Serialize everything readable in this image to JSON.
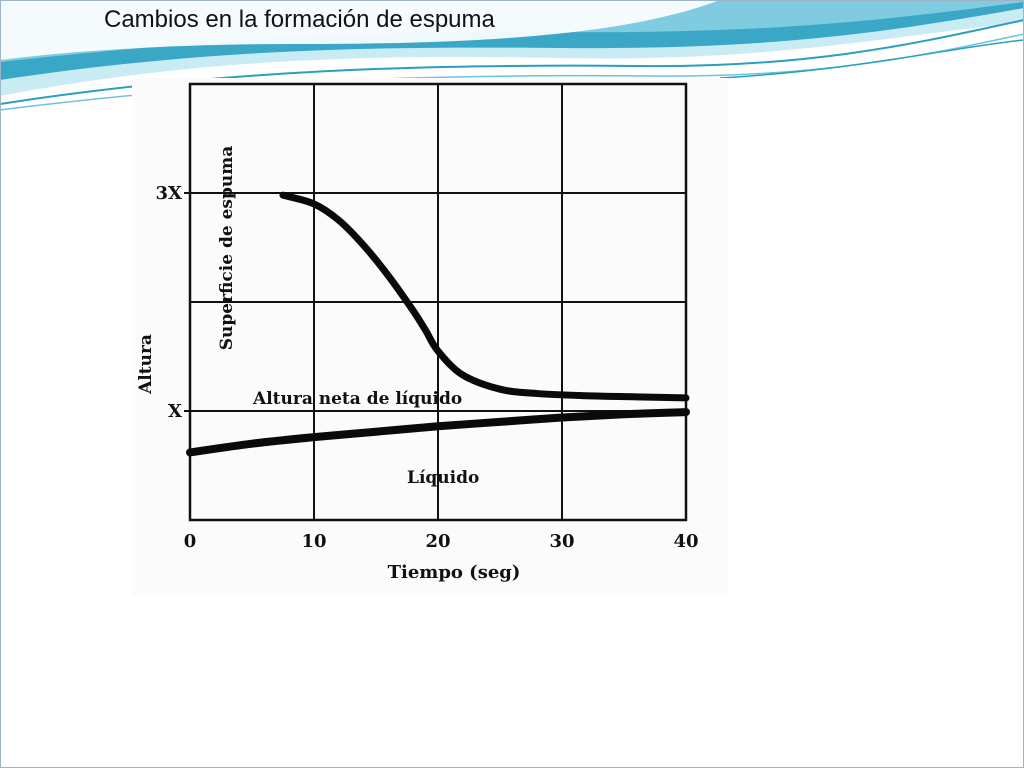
{
  "slide": {
    "title": "Cambios en la formación de espuma",
    "colors": {
      "wave_dark": "#2a9fc0",
      "wave_light": "#bde6f1",
      "frame": "#9fb4c8"
    }
  },
  "chart_data": {
    "type": "line",
    "title": "",
    "xlabel": "Tiempo (seg)",
    "ylabel": "Altura",
    "xlim": [
      0,
      40
    ],
    "ylim": [
      0,
      4
    ],
    "x_ticks": [
      0,
      10,
      20,
      30,
      40
    ],
    "x_tick_labels": [
      "0",
      "10",
      "20",
      "30",
      "40"
    ],
    "y_ticks": [
      1,
      3
    ],
    "y_tick_labels": [
      "X",
      "3X"
    ],
    "grid": true,
    "series": [
      {
        "name": "Superficie de espuma",
        "x": [
          7.5,
          10,
          12,
          14,
          16,
          18,
          19,
          20,
          22,
          25,
          28,
          32,
          36,
          40
        ],
        "y": [
          2.98,
          2.9,
          2.75,
          2.52,
          2.24,
          1.92,
          1.74,
          1.55,
          1.33,
          1.2,
          1.16,
          1.14,
          1.13,
          1.12
        ]
      },
      {
        "name": "Altura neta de líquido",
        "x": [
          0,
          5,
          10,
          15,
          20,
          25,
          30,
          35,
          40
        ],
        "y": [
          0.62,
          0.7,
          0.76,
          0.81,
          0.86,
          0.9,
          0.94,
          0.97,
          0.99
        ]
      }
    ],
    "annotations": [
      "Superficie de espuma",
      "Altura neta de líquido",
      "Líquido"
    ]
  }
}
